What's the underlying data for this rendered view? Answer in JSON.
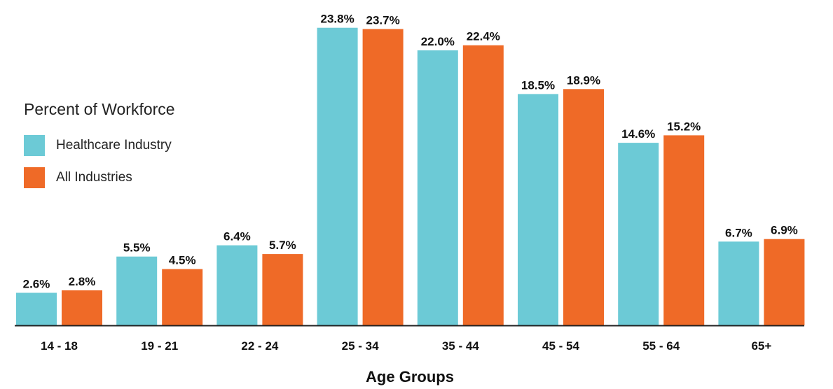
{
  "chart_data": {
    "type": "bar",
    "title": "",
    "xlabel": "Age Groups",
    "ylabel": "",
    "legend_title": "Percent of Workforce",
    "legend_position": "left",
    "grid": false,
    "categories": [
      "14 - 18",
      "19 - 21",
      "22 - 24",
      "25 - 34",
      "35 - 44",
      "45 - 54",
      "55 - 64",
      "65+"
    ],
    "series": [
      {
        "name": "Healthcare Industry",
        "color": "#6ccad6",
        "values": [
          2.6,
          5.5,
          6.4,
          23.8,
          22.0,
          18.5,
          14.6,
          6.7
        ],
        "labels": [
          "2.6%",
          "5.5%",
          "6.4%",
          "23.8%",
          "22.0%",
          "18.5%",
          "14.6%",
          "6.7%"
        ]
      },
      {
        "name": "All Industries",
        "color": "#ef6a27",
        "values": [
          2.8,
          4.5,
          5.7,
          23.7,
          22.4,
          18.9,
          15.2,
          6.9
        ],
        "labels": [
          "2.8%",
          "4.5%",
          "5.7%",
          "23.7%",
          "22.4%",
          "18.9%",
          "15.2%",
          "6.9%"
        ]
      }
    ],
    "ylim": [
      0,
      24
    ]
  }
}
